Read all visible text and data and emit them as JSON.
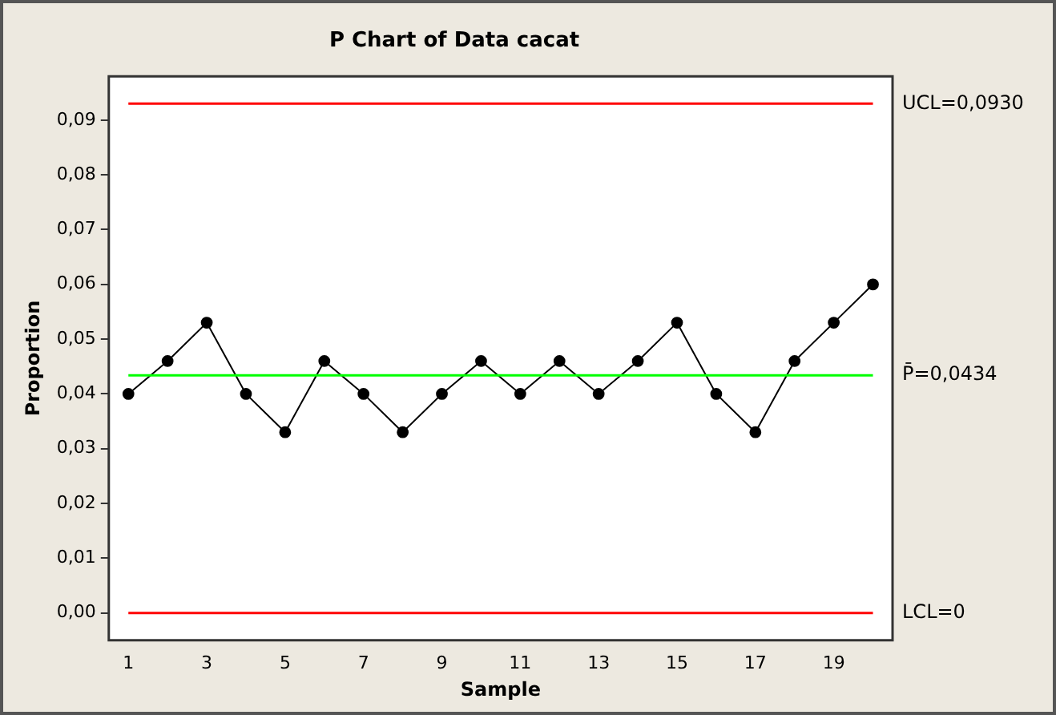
{
  "chart_data": {
    "type": "line",
    "title": "P Chart of Data cacat",
    "xlabel": "Sample",
    "ylabel": "Proportion",
    "x": [
      1,
      2,
      3,
      4,
      5,
      6,
      7,
      8,
      9,
      10,
      11,
      12,
      13,
      14,
      15,
      16,
      17,
      18,
      19,
      20
    ],
    "series": [
      {
        "color": "#000000",
        "values": [
          0.04,
          0.046,
          0.053,
          0.04,
          0.033,
          0.046,
          0.04,
          0.033,
          0.04,
          0.046,
          0.04,
          0.046,
          0.04,
          0.046,
          0.053,
          0.04,
          0.033,
          0.046,
          0.053,
          0.06
        ]
      }
    ],
    "xlim": [
      0.5,
      20.5
    ],
    "xticks": [
      1,
      3,
      5,
      7,
      9,
      11,
      13,
      15,
      17,
      19
    ],
    "ylim": [
      -0.005,
      0.098
    ],
    "yticks": [
      {
        "value": 0,
        "label": "0,00"
      },
      {
        "value": 0.01,
        "label": "0,01"
      },
      {
        "value": 0.02,
        "label": "0,02"
      },
      {
        "value": 0.03,
        "label": "0,03"
      },
      {
        "value": 0.04,
        "label": "0,04"
      },
      {
        "value": 0.05,
        "label": "0,05"
      },
      {
        "value": 0.06,
        "label": "0,06"
      },
      {
        "value": 0.07,
        "label": "0,07"
      },
      {
        "value": 0.08,
        "label": "0,08"
      },
      {
        "value": 0.09,
        "label": "0,09"
      }
    ],
    "ref_lines": [
      {
        "axis": "y",
        "value": 0.093,
        "label": "UCL=0,0930",
        "color": "#ff0000"
      },
      {
        "axis": "y",
        "value": 0.0434,
        "label": "P̄=0,0434",
        "color": "#00ff00"
      },
      {
        "axis": "y",
        "value": 0,
        "label": "LCL=0",
        "color": "#ff0000"
      }
    ],
    "marker": "circle",
    "line_style": "solid",
    "grid": false,
    "legend": false
  }
}
